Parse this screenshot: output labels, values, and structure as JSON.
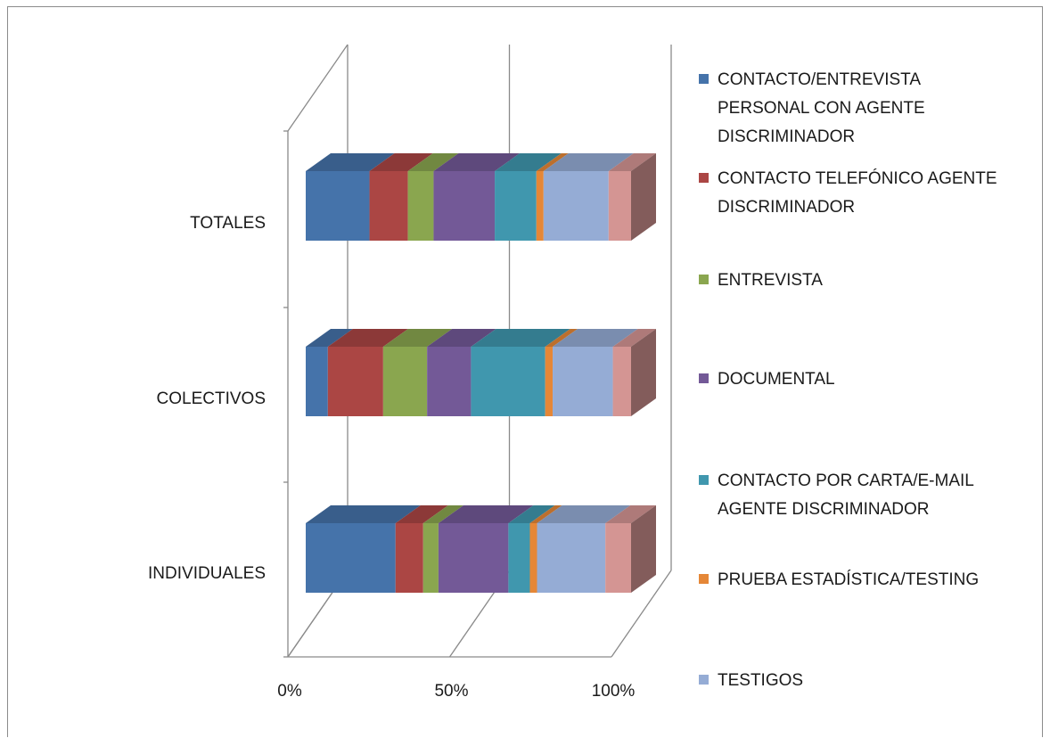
{
  "chart_data": {
    "type": "bar",
    "orientation": "horizontal",
    "stacked": "percent",
    "three_d": true,
    "categories": [
      "TOTALES",
      "COLECTIVOS",
      "INDIVIDUALES"
    ],
    "series": [
      {
        "name": "CONTACTO/ENTREVISTA PERSONAL CON AGENTE DISCRIMINADOR",
        "color": "#4573aa",
        "values": [
          19.6,
          6.8,
          27.6
        ]
      },
      {
        "name": "CONTACTO TELEFÓNICO AGENTE DISCRIMINADOR",
        "color": "#ab4644",
        "values": [
          11.8,
          17.0,
          8.5
        ]
      },
      {
        "name": "ENTREVISTA",
        "color": "#8aa64f",
        "values": [
          7.9,
          13.5,
          4.7
        ]
      },
      {
        "name": "DOCUMENTAL",
        "color": "#735997",
        "values": [
          18.8,
          13.5,
          21.5
        ]
      },
      {
        "name": "CONTACTO POR CARTA/E-MAIL AGENTE DISCRIMINADOR",
        "color": "#4097ae",
        "values": [
          12.8,
          22.8,
          6.6
        ]
      },
      {
        "name": "PRUEBA ESTADÍSTICA/TESTING",
        "color": "#e58737",
        "values": [
          2.2,
          2.3,
          2.2
        ]
      },
      {
        "name": "TESTIGOS",
        "color": "#95acd5",
        "values": [
          20.0,
          18.5,
          21.0
        ]
      },
      {
        "name": "",
        "color": "#d49593",
        "values": [
          6.9,
          5.6,
          7.9
        ]
      }
    ],
    "x_ticks": [
      "0%",
      "50%",
      "100%"
    ],
    "xlim": [
      0,
      100
    ],
    "grid": true,
    "legend_position": "right",
    "title": "",
    "xlabel": "",
    "ylabel": ""
  }
}
